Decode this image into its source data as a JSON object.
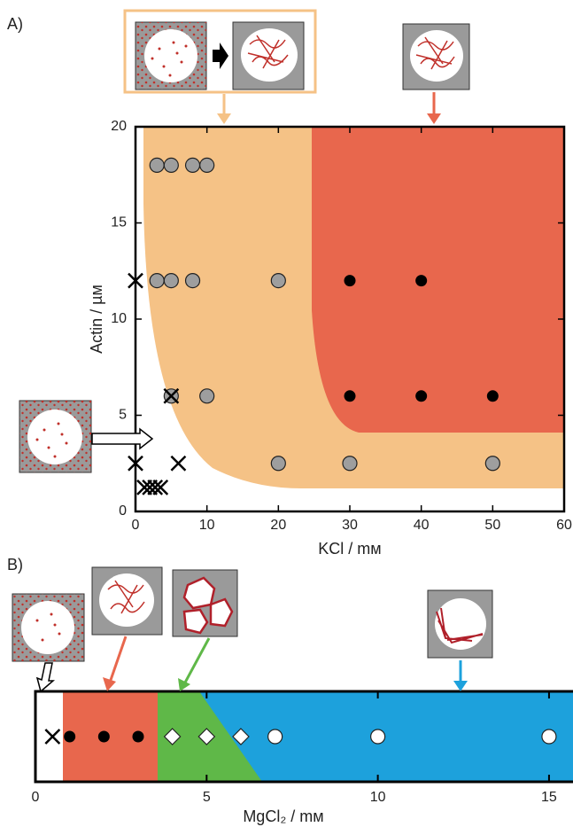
{
  "chart_data": [
    {
      "type": "scatter",
      "label": "A)",
      "xlabel": "KCl / mᴍ",
      "ylabel": "Actin / µᴍ",
      "xlim": [
        0,
        60
      ],
      "ylim": [
        0,
        20
      ],
      "xticks": [
        0,
        10,
        20,
        30,
        40,
        50,
        60
      ],
      "yticks": [
        0,
        5,
        10,
        15,
        20
      ],
      "series": [
        {
          "marker": "circle",
          "color": "#9e9e9e",
          "x": [
            3,
            5,
            8,
            10,
            3,
            5,
            8,
            20,
            5,
            10,
            20,
            30,
            50
          ],
          "y": [
            18,
            18,
            18,
            18,
            12,
            12,
            12,
            12,
            6,
            6,
            2.5,
            2.5,
            2.5
          ]
        },
        {
          "marker": "dot",
          "color": "#000000",
          "x": [
            30,
            40,
            30,
            40,
            50
          ],
          "y": [
            12,
            12,
            6,
            6,
            6
          ]
        },
        {
          "marker": "cross",
          "color": "#000000",
          "x": [
            0,
            5,
            0,
            6,
            1.25,
            2,
            2.75,
            3.5
          ],
          "y": [
            12,
            6,
            2.5,
            2.5,
            1.25,
            1.25,
            1.25,
            1.25
          ]
        }
      ]
    },
    {
      "type": "strip",
      "label": "B)",
      "xlabel": "MgCl₂ / mᴍ",
      "xlim": [
        0,
        15.7
      ],
      "xticks": [
        0,
        5,
        10,
        15
      ],
      "series": [
        {
          "marker": "cross",
          "color": "#000000",
          "x": [
            0.5
          ]
        },
        {
          "marker": "dot",
          "color": "#000000",
          "x": [
            1,
            2,
            3
          ]
        },
        {
          "marker": "diamond",
          "color": "#ffffff",
          "x": [
            4,
            5,
            6
          ]
        },
        {
          "marker": "circle",
          "color": "#ffffff",
          "x": [
            7,
            10,
            15
          ]
        }
      ]
    }
  ]
}
